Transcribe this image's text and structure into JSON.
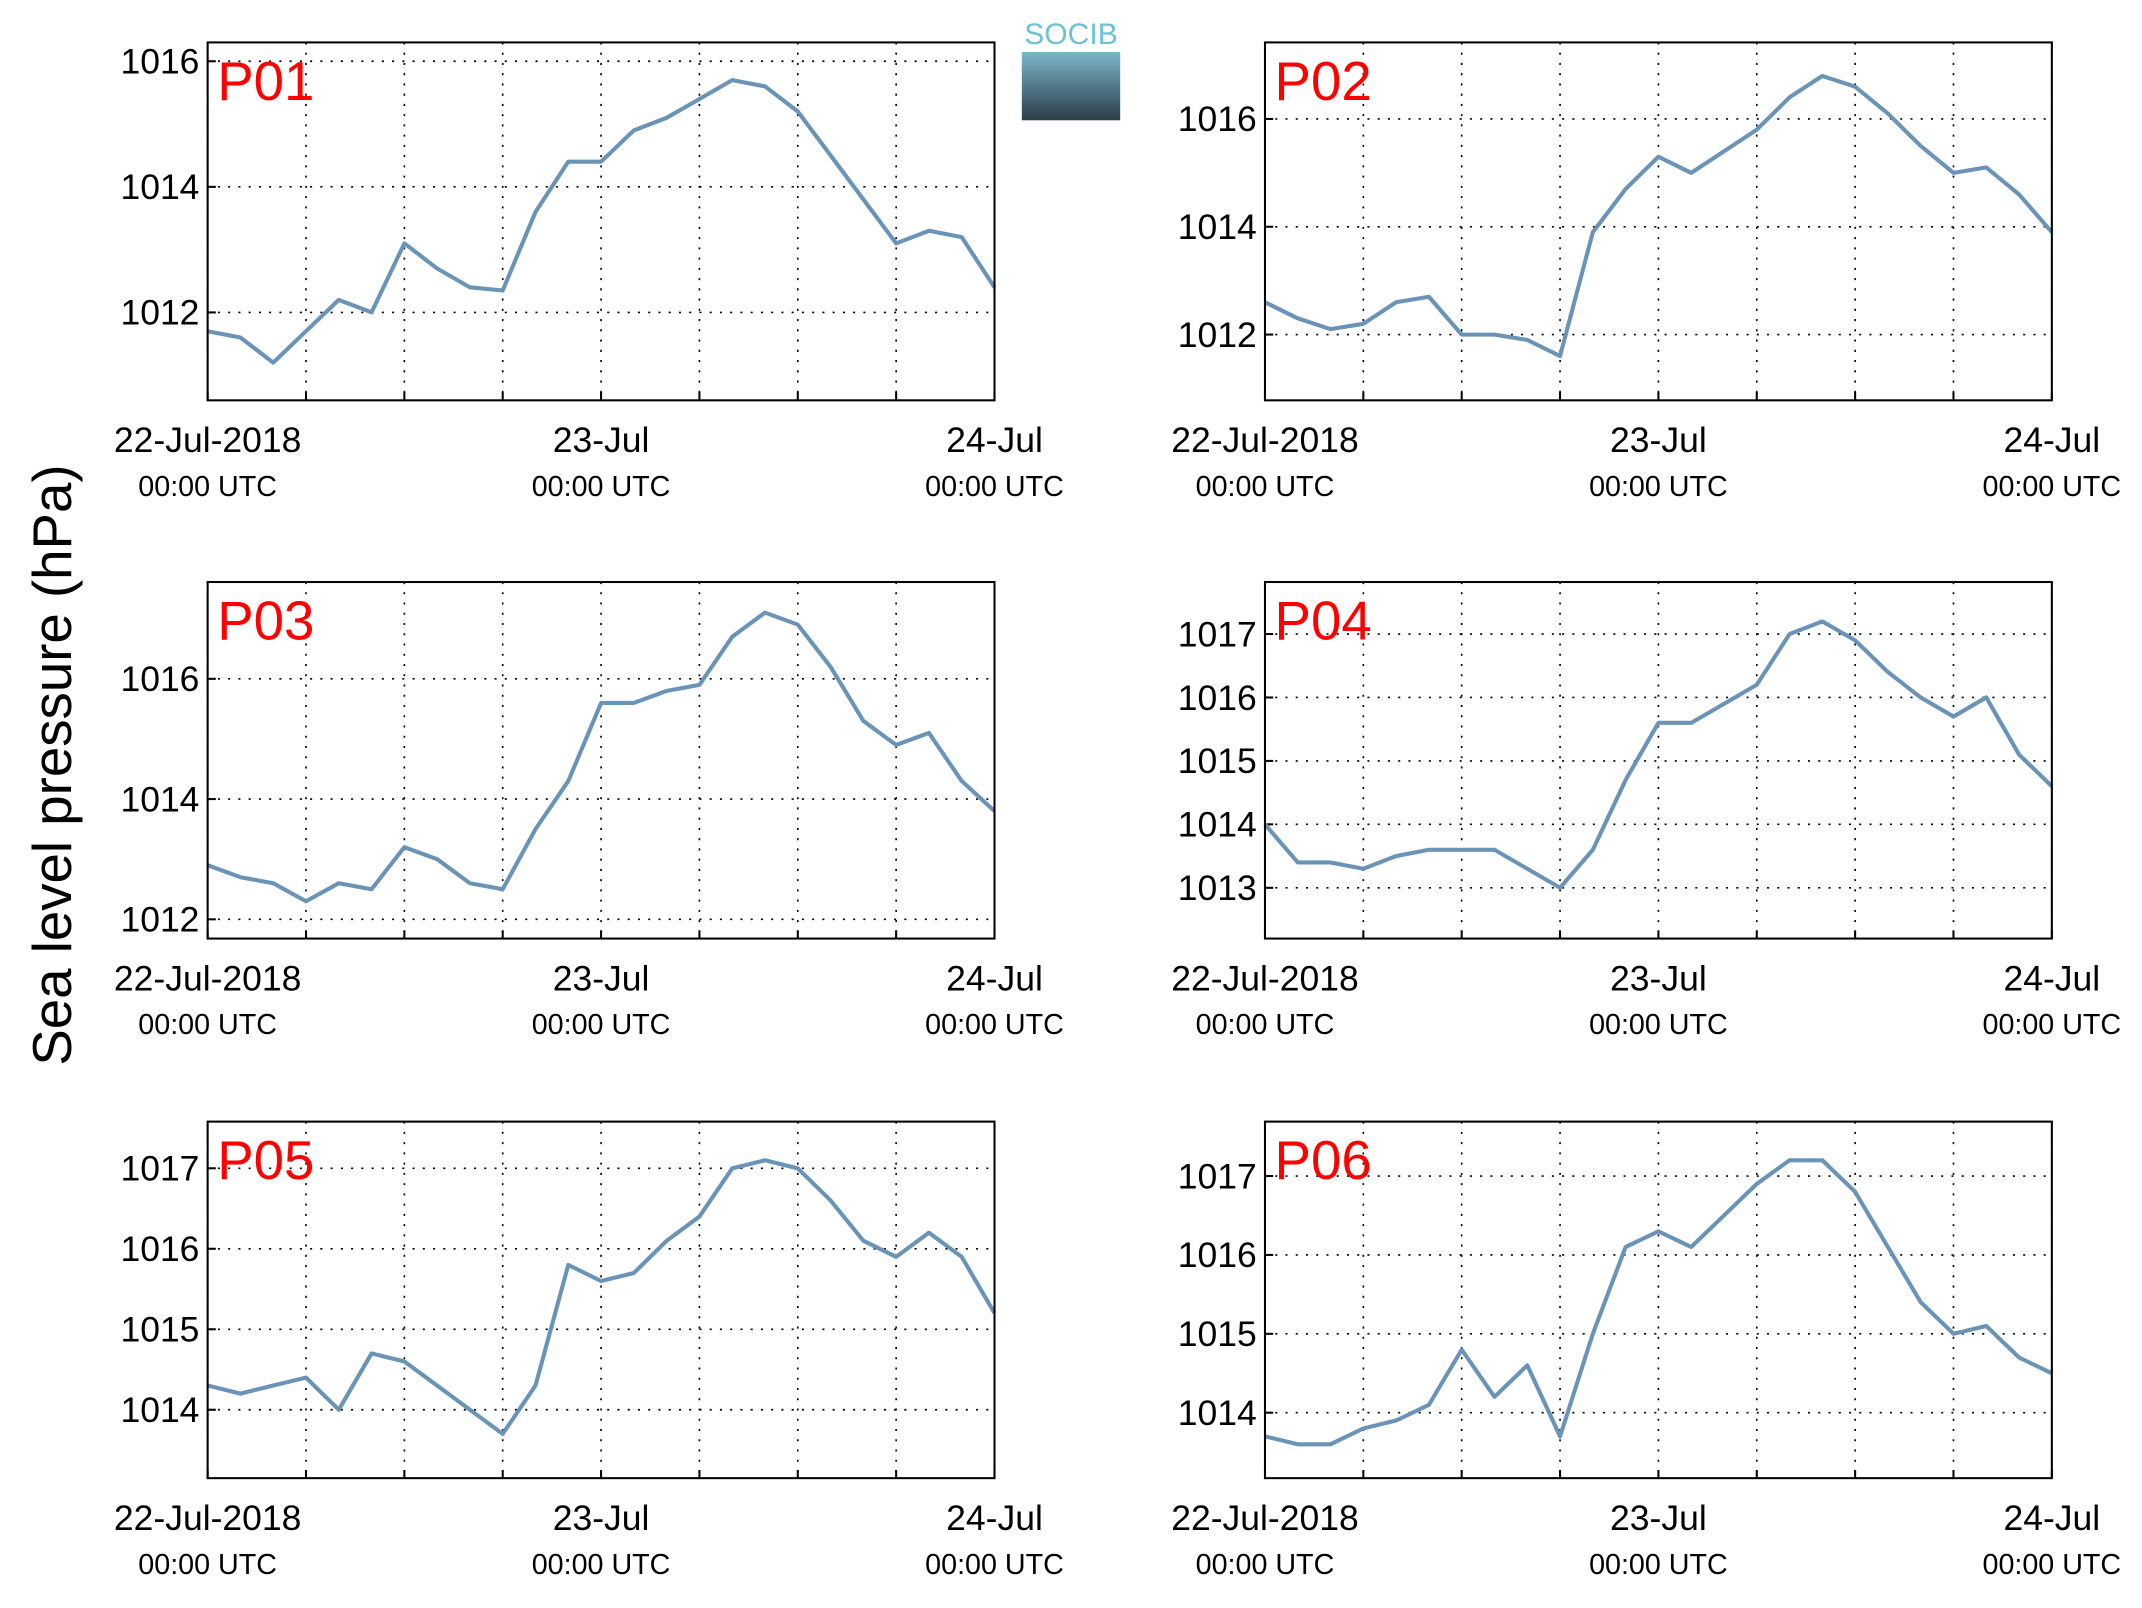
{
  "ylabel": "Sea level pressure (hPa)",
  "logo": "SOCIB",
  "chart_data": [
    {
      "type": "line",
      "title": "P01",
      "color": "#6a93b8",
      "grid": true,
      "x": [
        0,
        2,
        4,
        6,
        8,
        10,
        12,
        14,
        16,
        18,
        20,
        22,
        24,
        26,
        28,
        30,
        32,
        34,
        36,
        38,
        40,
        42,
        44,
        46,
        48
      ],
      "values": [
        1011.7,
        1011.6,
        1011.2,
        1011.7,
        1012.2,
        1012.0,
        1013.1,
        1012.7,
        1012.4,
        1012.35,
        1013.6,
        1014.4,
        1014.4,
        1014.9,
        1015.1,
        1015.4,
        1015.7,
        1015.6,
        1015.2,
        1014.5,
        1013.8,
        1013.1,
        1013.3,
        1013.2,
        1012.4
      ],
      "xlim": [
        0,
        48
      ],
      "xticks": [
        {
          "value": 0,
          "label": "22-Jul-2018\n00:00 UTC"
        },
        {
          "value": 6,
          "label": null
        },
        {
          "value": 12,
          "label": null
        },
        {
          "value": 18,
          "label": null
        },
        {
          "value": 24,
          "label": "23-Jul\n00:00 UTC"
        },
        {
          "value": 30,
          "label": null
        },
        {
          "value": 36,
          "label": null
        },
        {
          "value": 42,
          "label": null
        },
        {
          "value": 48,
          "label": "24-Jul\n00:00 UTC"
        }
      ],
      "ylim": [
        1010.6,
        1016.3
      ],
      "yticks": [
        1012,
        1014,
        1016
      ]
    },
    {
      "type": "line",
      "title": "P02",
      "color": "#6a93b8",
      "grid": true,
      "x": [
        0,
        2,
        4,
        6,
        8,
        10,
        12,
        14,
        16,
        18,
        20,
        22,
        24,
        26,
        28,
        30,
        32,
        34,
        36,
        38,
        40,
        42,
        44,
        46,
        48
      ],
      "values": [
        1012.6,
        1012.3,
        1012.1,
        1012.2,
        1012.6,
        1012.7,
        1012.0,
        1012.0,
        1011.9,
        1011.6,
        1013.9,
        1014.7,
        1015.3,
        1015.0,
        1015.4,
        1015.8,
        1016.4,
        1016.8,
        1016.6,
        1016.1,
        1015.5,
        1015.0,
        1015.1,
        1014.6,
        1013.9
      ],
      "xlim": [
        0,
        48
      ],
      "xticks": [
        {
          "value": 0,
          "label": "22-Jul-2018\n00:00 UTC"
        },
        {
          "value": 6,
          "label": null
        },
        {
          "value": 12,
          "label": null
        },
        {
          "value": 18,
          "label": null
        },
        {
          "value": 24,
          "label": "23-Jul\n00:00 UTC"
        },
        {
          "value": 30,
          "label": null
        },
        {
          "value": 36,
          "label": null
        },
        {
          "value": 42,
          "label": null
        },
        {
          "value": 48,
          "label": "24-Jul\n00:00 UTC"
        }
      ],
      "ylim": [
        1010.78,
        1017.42
      ],
      "yticks": [
        1012,
        1014,
        1016
      ]
    },
    {
      "type": "line",
      "title": "P03",
      "color": "#6a93b8",
      "grid": true,
      "x": [
        0,
        2,
        4,
        6,
        8,
        10,
        12,
        14,
        16,
        18,
        20,
        22,
        24,
        26,
        28,
        30,
        32,
        34,
        36,
        38,
        40,
        42,
        44,
        46,
        48
      ],
      "values": [
        1012.9,
        1012.7,
        1012.6,
        1012.3,
        1012.6,
        1012.5,
        1013.2,
        1013.0,
        1012.6,
        1012.5,
        1013.5,
        1014.3,
        1015.6,
        1015.6,
        1015.8,
        1015.9,
        1016.7,
        1017.1,
        1016.9,
        1016.2,
        1015.3,
        1014.9,
        1015.1,
        1014.3,
        1013.8
      ],
      "xlim": [
        0,
        48
      ],
      "xticks": [
        {
          "value": 0,
          "label": "22-Jul-2018\n00:00 UTC"
        },
        {
          "value": 6,
          "label": null
        },
        {
          "value": 12,
          "label": null
        },
        {
          "value": 18,
          "label": null
        },
        {
          "value": 24,
          "label": "23-Jul\n00:00 UTC"
        },
        {
          "value": 30,
          "label": null
        },
        {
          "value": 36,
          "label": null
        },
        {
          "value": 42,
          "label": null
        },
        {
          "value": 48,
          "label": "24-Jul\n00:00 UTC"
        }
      ],
      "ylim": [
        1011.68,
        1017.61
      ],
      "yticks": [
        1012,
        1014,
        1016
      ]
    },
    {
      "type": "line",
      "title": "P04",
      "color": "#6a93b8",
      "grid": true,
      "x": [
        0,
        2,
        4,
        6,
        8,
        10,
        12,
        14,
        16,
        18,
        20,
        22,
        24,
        26,
        28,
        30,
        32,
        34,
        36,
        38,
        40,
        42,
        44,
        46,
        48
      ],
      "values": [
        1014.0,
        1013.4,
        1013.4,
        1013.3,
        1013.5,
        1013.6,
        1013.6,
        1013.6,
        1013.3,
        1013.0,
        1013.6,
        1014.7,
        1015.6,
        1015.6,
        1015.9,
        1016.2,
        1017.0,
        1017.2,
        1016.9,
        1016.4,
        1016.0,
        1015.7,
        1016.0,
        1015.1,
        1014.6
      ],
      "xlim": [
        0,
        48
      ],
      "xticks": [
        {
          "value": 0,
          "label": "22-Jul-2018\n00:00 UTC"
        },
        {
          "value": 6,
          "label": null
        },
        {
          "value": 12,
          "label": null
        },
        {
          "value": 18,
          "label": null
        },
        {
          "value": 24,
          "label": "23-Jul\n00:00 UTC"
        },
        {
          "value": 30,
          "label": null
        },
        {
          "value": 36,
          "label": null
        },
        {
          "value": 42,
          "label": null
        },
        {
          "value": 48,
          "label": "24-Jul\n00:00 UTC"
        }
      ],
      "ylim": [
        1012.2,
        1017.82
      ],
      "yticks": [
        1013,
        1014,
        1015,
        1016,
        1017
      ]
    },
    {
      "type": "line",
      "title": "P05",
      "color": "#6a93b8",
      "grid": true,
      "x": [
        0,
        2,
        4,
        6,
        8,
        10,
        12,
        14,
        16,
        18,
        20,
        22,
        24,
        26,
        28,
        30,
        32,
        34,
        36,
        38,
        40,
        42,
        44,
        46,
        48
      ],
      "values": [
        1014.3,
        1014.2,
        1014.3,
        1014.4,
        1014.0,
        1014.7,
        1014.6,
        1014.3,
        1014.0,
        1013.7,
        1014.3,
        1015.8,
        1015.6,
        1015.7,
        1016.1,
        1016.4,
        1017.0,
        1017.1,
        1017.0,
        1016.6,
        1016.1,
        1015.9,
        1016.2,
        1015.9,
        1015.2
      ],
      "xlim": [
        0,
        48
      ],
      "xticks": [
        {
          "value": 0,
          "label": "22-Jul-2018\n00:00 UTC"
        },
        {
          "value": 6,
          "label": null
        },
        {
          "value": 12,
          "label": null
        },
        {
          "value": 18,
          "label": null
        },
        {
          "value": 24,
          "label": "23-Jul\n00:00 UTC"
        },
        {
          "value": 30,
          "label": null
        },
        {
          "value": 36,
          "label": null
        },
        {
          "value": 42,
          "label": null
        },
        {
          "value": 48,
          "label": "24-Jul\n00:00 UTC"
        }
      ],
      "ylim": [
        1013.15,
        1017.58
      ],
      "yticks": [
        1014,
        1015,
        1016,
        1017
      ]
    },
    {
      "type": "line",
      "title": "P06",
      "color": "#6a93b8",
      "grid": true,
      "x": [
        0,
        2,
        4,
        6,
        8,
        10,
        12,
        14,
        16,
        18,
        20,
        22,
        24,
        26,
        28,
        30,
        32,
        34,
        36,
        38,
        40,
        42,
        44,
        46,
        48
      ],
      "values": [
        1013.7,
        1013.6,
        1013.6,
        1013.8,
        1013.9,
        1014.1,
        1014.8,
        1014.2,
        1014.6,
        1013.7,
        1015.0,
        1016.1,
        1016.3,
        1016.1,
        1016.5,
        1016.9,
        1017.2,
        1017.2,
        1016.8,
        1016.1,
        1015.4,
        1015.0,
        1015.1,
        1014.7,
        1014.5
      ],
      "xlim": [
        0,
        48
      ],
      "xticks": [
        {
          "value": 0,
          "label": "22-Jul-2018\n00:00 UTC"
        },
        {
          "value": 6,
          "label": null
        },
        {
          "value": 12,
          "label": null
        },
        {
          "value": 18,
          "label": null
        },
        {
          "value": 24,
          "label": "23-Jul\n00:00 UTC"
        },
        {
          "value": 30,
          "label": null
        },
        {
          "value": 36,
          "label": null
        },
        {
          "value": 42,
          "label": null
        },
        {
          "value": 48,
          "label": "24-Jul\n00:00 UTC"
        }
      ],
      "ylim": [
        1013.17,
        1017.69
      ],
      "yticks": [
        1014,
        1015,
        1016,
        1017
      ]
    }
  ]
}
